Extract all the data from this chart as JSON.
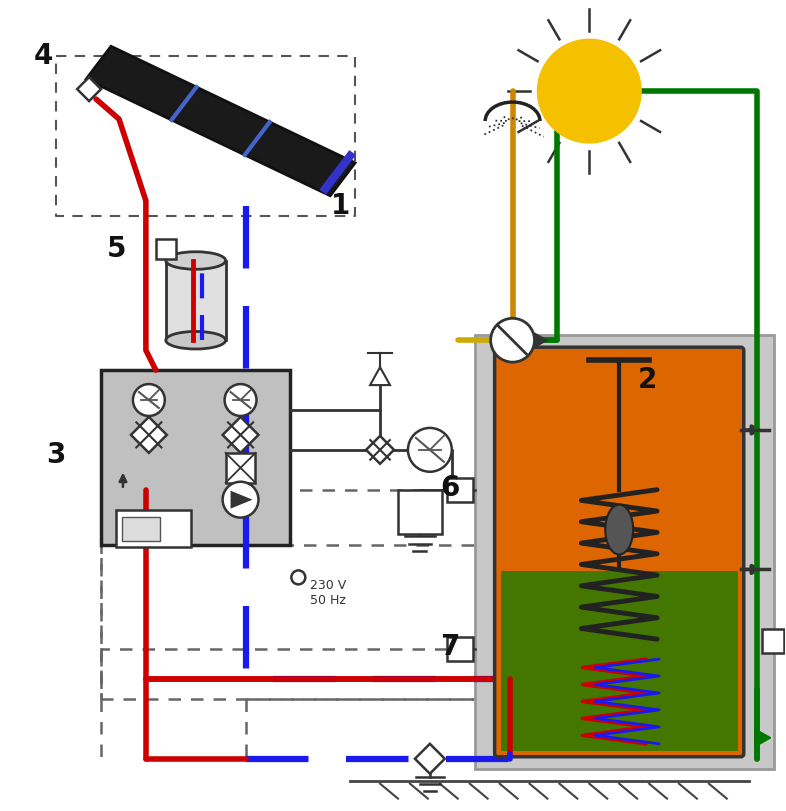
{
  "bg_color": "#ffffff",
  "fig_width": 7.86,
  "fig_height": 8.11,
  "dpi": 100,
  "colors": {
    "red": "#cc0000",
    "blue": "#1a1aee",
    "green": "#007700",
    "orange_pipe": "#cc8800",
    "dark": "#111111",
    "gray_box": "#c0c0c0",
    "sun_yellow": "#f5c000",
    "tank_orange": "#dd6600",
    "tank_green": "#447700",
    "tank_green2": "#336600"
  },
  "voltage_text": "230 V\n50 Hz"
}
